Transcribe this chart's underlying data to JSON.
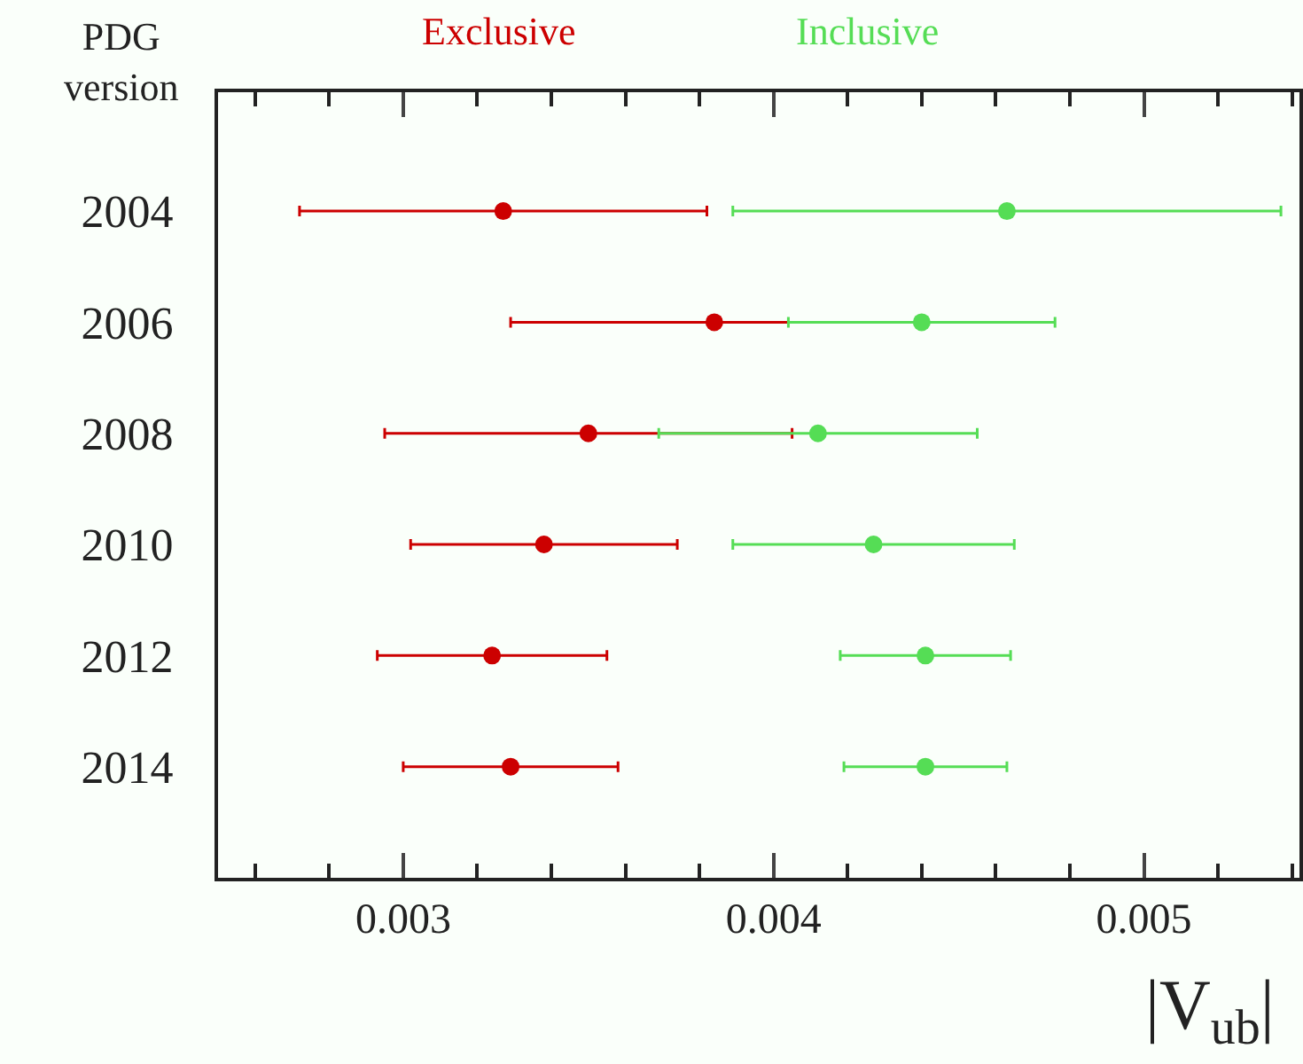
{
  "chart_data": {
    "type": "scatter",
    "ylabel": "PDG version",
    "xlabel": "|V$_{ub}$|",
    "categories": [
      "2004",
      "2006",
      "2008",
      "2010",
      "2012",
      "2014"
    ],
    "orientation": "horizontal",
    "series": [
      {
        "name": "Exclusive",
        "color": "#cc0000",
        "values": [
          0.00327,
          0.00384,
          0.0035,
          0.00338,
          0.00324,
          0.00329
        ],
        "errors": [
          0.00055,
          0.00055,
          0.00055,
          0.00036,
          0.00031,
          0.00029
        ]
      },
      {
        "name": "Inclusive",
        "color": "#55dd55",
        "values": [
          0.00463,
          0.0044,
          0.00412,
          0.00427,
          0.00441,
          0.00441
        ],
        "errors": [
          0.00074,
          0.00036,
          0.00043,
          0.00038,
          0.00023,
          0.00022
        ]
      }
    ],
    "xlim": [
      0.0025,
      0.00542
    ],
    "xticks": [
      {
        "value": 0.0026,
        "label": null
      },
      {
        "value": 0.0028,
        "label": null
      },
      0.003,
      {
        "value": 0.0032,
        "label": null
      },
      {
        "value": 0.0034,
        "label": null
      },
      {
        "value": 0.0036,
        "label": null
      },
      {
        "value": 0.0038,
        "label": null
      },
      0.004,
      {
        "value": 0.0042,
        "label": null
      },
      {
        "value": 0.0044,
        "label": null
      },
      {
        "value": 0.0046,
        "label": null
      },
      {
        "value": 0.0048,
        "label": null
      },
      0.005,
      {
        "value": 0.0052,
        "label": null
      },
      {
        "value": 0.0054,
        "label": null
      }
    ],
    "marker": "circle"
  }
}
